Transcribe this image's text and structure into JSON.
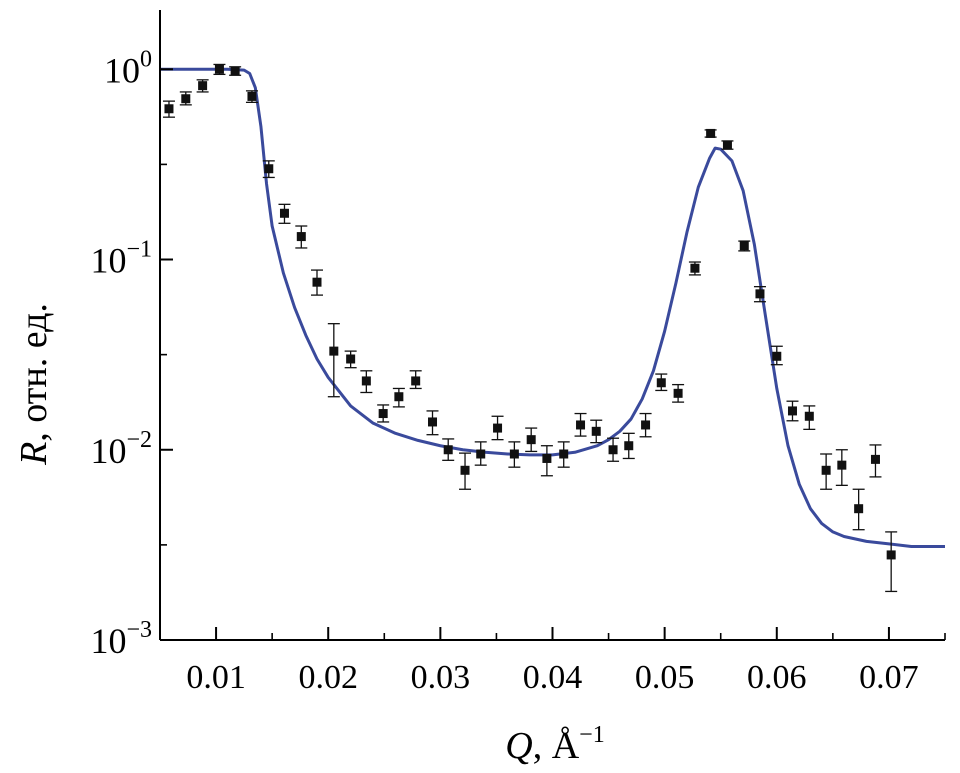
{
  "chart_data": {
    "type": "scatter",
    "title": "",
    "xlabel": {
      "symbol": "Q",
      "rest": ", Å",
      "sup": "−1"
    },
    "ylabel": {
      "symbol": "R",
      "rest": ", отн. ед."
    },
    "xlim": [
      0.005,
      0.075
    ],
    "ylim": [
      0.001,
      2.0
    ],
    "yscale": "log",
    "grid": false,
    "legend": "none",
    "x_ticks": [
      {
        "value": 0.01,
        "label": "0.01"
      },
      {
        "value": 0.02,
        "label": "0.02"
      },
      {
        "value": 0.03,
        "label": "0.03"
      },
      {
        "value": 0.04,
        "label": "0.04"
      },
      {
        "value": 0.05,
        "label": "0.05"
      },
      {
        "value": 0.06,
        "label": "0.06"
      },
      {
        "value": 0.07,
        "label": "0.07"
      }
    ],
    "y_ticks": [
      {
        "value": 1,
        "base": "10",
        "exp": "0"
      },
      {
        "value": 0.1,
        "base": "10",
        "exp": "−1"
      },
      {
        "value": 0.01,
        "base": "10",
        "exp": "−2"
      },
      {
        "value": 0.001,
        "base": "10",
        "exp": "−3"
      }
    ],
    "colors": {
      "fit": "#3a4a9c",
      "points": "#111111",
      "axes": "#000000"
    },
    "series": [
      {
        "kind": "points_with_errorbars",
        "points": [
          {
            "x": 0.0058,
            "y": 0.62,
            "lo": 0.56,
            "hi": 0.68
          },
          {
            "x": 0.0073,
            "y": 0.7,
            "lo": 0.65,
            "hi": 0.76
          },
          {
            "x": 0.0088,
            "y": 0.82,
            "lo": 0.76,
            "hi": 0.88
          },
          {
            "x": 0.0103,
            "y": 1.0,
            "lo": 0.94,
            "hi": 1.06
          },
          {
            "x": 0.0117,
            "y": 0.98,
            "lo": 0.93,
            "hi": 1.03
          },
          {
            "x": 0.0132,
            "y": 0.72,
            "lo": 0.67,
            "hi": 0.77
          },
          {
            "x": 0.0147,
            "y": 0.3,
            "lo": 0.27,
            "hi": 0.33
          },
          {
            "x": 0.0161,
            "y": 0.175,
            "lo": 0.155,
            "hi": 0.195
          },
          {
            "x": 0.0176,
            "y": 0.132,
            "lo": 0.115,
            "hi": 0.15
          },
          {
            "x": 0.019,
            "y": 0.076,
            "lo": 0.065,
            "hi": 0.088
          },
          {
            "x": 0.0205,
            "y": 0.033,
            "lo": 0.019,
            "hi": 0.046
          },
          {
            "x": 0.022,
            "y": 0.03,
            "lo": 0.027,
            "hi": 0.033
          },
          {
            "x": 0.0234,
            "y": 0.023,
            "lo": 0.02,
            "hi": 0.026
          },
          {
            "x": 0.0249,
            "y": 0.0155,
            "lo": 0.014,
            "hi": 0.0172
          },
          {
            "x": 0.0263,
            "y": 0.019,
            "lo": 0.0168,
            "hi": 0.021
          },
          {
            "x": 0.0278,
            "y": 0.023,
            "lo": 0.021,
            "hi": 0.026
          },
          {
            "x": 0.0293,
            "y": 0.014,
            "lo": 0.012,
            "hi": 0.016
          },
          {
            "x": 0.0307,
            "y": 0.01,
            "lo": 0.0088,
            "hi": 0.0114
          },
          {
            "x": 0.0322,
            "y": 0.0078,
            "lo": 0.0062,
            "hi": 0.0096
          },
          {
            "x": 0.0336,
            "y": 0.0095,
            "lo": 0.0083,
            "hi": 0.011
          },
          {
            "x": 0.0351,
            "y": 0.013,
            "lo": 0.0113,
            "hi": 0.015
          },
          {
            "x": 0.0366,
            "y": 0.0095,
            "lo": 0.0081,
            "hi": 0.011
          },
          {
            "x": 0.0381,
            "y": 0.0113,
            "lo": 0.0098,
            "hi": 0.013
          },
          {
            "x": 0.0395,
            "y": 0.009,
            "lo": 0.0073,
            "hi": 0.0105
          },
          {
            "x": 0.041,
            "y": 0.0095,
            "lo": 0.0081,
            "hi": 0.011
          },
          {
            "x": 0.0425,
            "y": 0.0135,
            "lo": 0.0118,
            "hi": 0.0155
          },
          {
            "x": 0.0439,
            "y": 0.0125,
            "lo": 0.0109,
            "hi": 0.0143
          },
          {
            "x": 0.0454,
            "y": 0.01,
            "lo": 0.0087,
            "hi": 0.0115
          },
          {
            "x": 0.0468,
            "y": 0.0105,
            "lo": 0.009,
            "hi": 0.0122
          },
          {
            "x": 0.0483,
            "y": 0.0135,
            "lo": 0.0117,
            "hi": 0.0155
          },
          {
            "x": 0.0497,
            "y": 0.0225,
            "lo": 0.0205,
            "hi": 0.025
          },
          {
            "x": 0.0512,
            "y": 0.0198,
            "lo": 0.0178,
            "hi": 0.022
          },
          {
            "x": 0.0527,
            "y": 0.09,
            "lo": 0.083,
            "hi": 0.097
          },
          {
            "x": 0.0541,
            "y": 0.46,
            "lo": 0.44,
            "hi": 0.48
          },
          {
            "x": 0.0556,
            "y": 0.4,
            "lo": 0.38,
            "hi": 0.42
          },
          {
            "x": 0.0571,
            "y": 0.118,
            "lo": 0.111,
            "hi": 0.125
          },
          {
            "x": 0.0585,
            "y": 0.066,
            "lo": 0.06,
            "hi": 0.072
          },
          {
            "x": 0.06,
            "y": 0.031,
            "lo": 0.028,
            "hi": 0.035
          },
          {
            "x": 0.0614,
            "y": 0.016,
            "lo": 0.0142,
            "hi": 0.018
          },
          {
            "x": 0.0629,
            "y": 0.015,
            "lo": 0.0128,
            "hi": 0.017
          },
          {
            "x": 0.0644,
            "y": 0.0078,
            "lo": 0.0062,
            "hi": 0.0095
          },
          {
            "x": 0.0658,
            "y": 0.0083,
            "lo": 0.0065,
            "hi": 0.01
          },
          {
            "x": 0.0673,
            "y": 0.0049,
            "lo": 0.0038,
            "hi": 0.0062
          },
          {
            "x": 0.0688,
            "y": 0.0089,
            "lo": 0.0072,
            "hi": 0.0106
          },
          {
            "x": 0.0702,
            "y": 0.0028,
            "lo": 0.0018,
            "hi": 0.0037
          }
        ]
      },
      {
        "kind": "fit_curve",
        "x": [
          0.005,
          0.008,
          0.011,
          0.0125,
          0.013,
          0.0135,
          0.014,
          0.0145,
          0.015,
          0.016,
          0.017,
          0.018,
          0.019,
          0.02,
          0.022,
          0.024,
          0.026,
          0.028,
          0.03,
          0.032,
          0.034,
          0.036,
          0.038,
          0.04,
          0.042,
          0.044,
          0.045,
          0.046,
          0.047,
          0.048,
          0.049,
          0.05,
          0.051,
          0.052,
          0.053,
          0.054,
          0.0545,
          0.055,
          0.056,
          0.057,
          0.058,
          0.059,
          0.06,
          0.061,
          0.062,
          0.063,
          0.064,
          0.065,
          0.066,
          0.068,
          0.07,
          0.072,
          0.075
        ],
        "y": [
          1.0,
          1.0,
          1.0,
          0.99,
          0.95,
          0.8,
          0.5,
          0.25,
          0.15,
          0.085,
          0.056,
          0.04,
          0.03,
          0.024,
          0.017,
          0.0138,
          0.0122,
          0.0112,
          0.0105,
          0.01,
          0.0097,
          0.0095,
          0.0094,
          0.0094,
          0.0097,
          0.0105,
          0.0113,
          0.0125,
          0.0145,
          0.0185,
          0.026,
          0.042,
          0.075,
          0.14,
          0.24,
          0.34,
          0.385,
          0.38,
          0.33,
          0.23,
          0.12,
          0.05,
          0.021,
          0.0105,
          0.0066,
          0.0049,
          0.0041,
          0.0037,
          0.0035,
          0.0033,
          0.0032,
          0.0031,
          0.0031
        ]
      }
    ]
  }
}
